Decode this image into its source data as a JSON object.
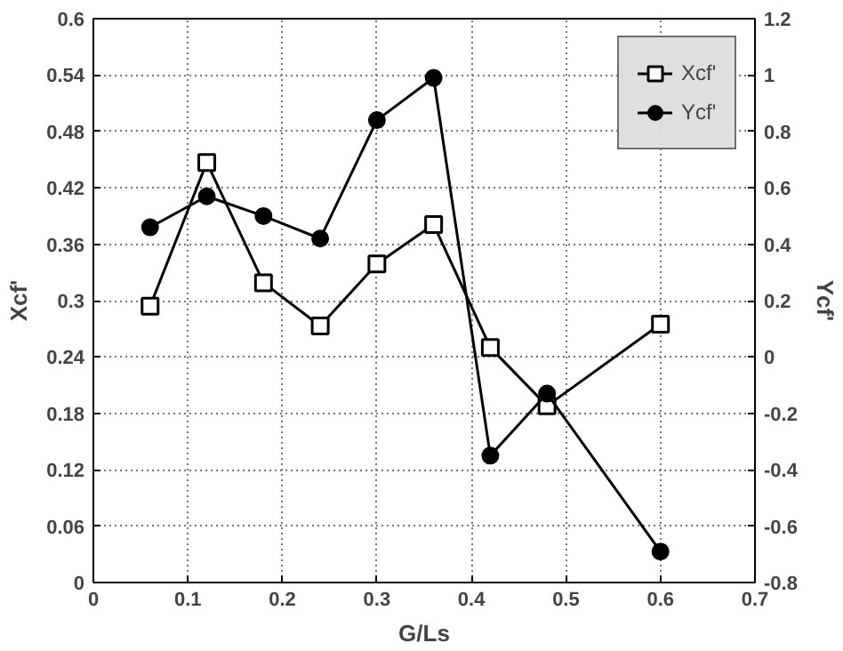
{
  "chart_data": {
    "type": "line",
    "xlabel": "G/Ls",
    "ylabel": "Xcf'",
    "y2label": "Ycf'",
    "x": [
      0.06,
      0.12,
      0.18,
      0.24,
      0.3,
      0.36,
      0.42,
      0.48,
      0.6
    ],
    "series": [
      {
        "name": "Xcf'",
        "color": "#000000",
        "marker": "square",
        "values": [
          0.294,
          0.447,
          0.319,
          0.273,
          0.339,
          0.381,
          0.25,
          0.188,
          0.275
        ]
      },
      {
        "name": "Ycf'",
        "color": "#000000",
        "marker": "circle",
        "axis": "y2",
        "values": [
          0.46,
          0.57,
          0.5,
          0.42,
          0.84,
          0.99,
          -0.35,
          -0.13,
          -0.69
        ]
      }
    ],
    "xlim": [
      0,
      0.7
    ],
    "xticks": [
      0,
      0.1,
      0.2,
      0.3,
      0.4,
      0.5,
      0.6,
      0.7
    ],
    "ylim": [
      0,
      0.6
    ],
    "yticks": [
      0,
      0.06,
      0.12,
      0.18,
      0.24,
      0.3,
      0.36,
      0.42,
      0.48,
      0.54,
      0.6
    ],
    "y2lim": [
      -0.8,
      1.2
    ],
    "y2ticks": [
      -0.8,
      -0.6,
      -0.4,
      -0.2,
      0,
      0.2,
      0.4,
      0.6,
      0.8,
      1,
      1.2
    ],
    "grid": true,
    "legend": "top right",
    "line_style": "solid"
  }
}
